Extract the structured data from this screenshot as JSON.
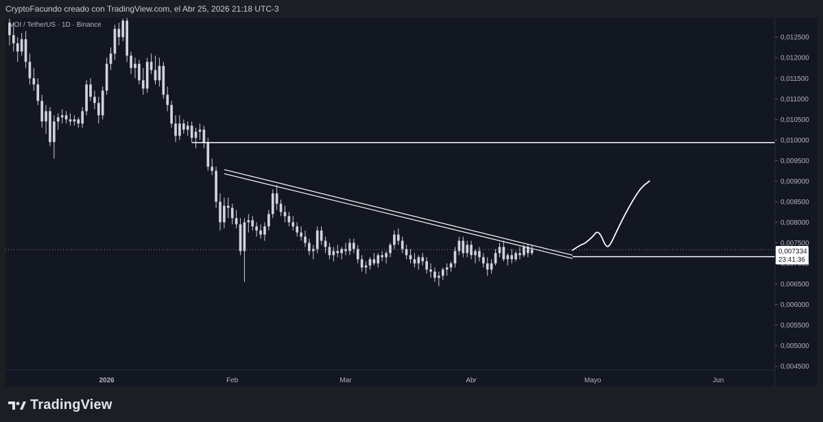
{
  "header": {
    "attribution": "CryptoFacundo creado con TradingView.com, el Abr 25, 2026 21:18 UTC-3"
  },
  "footer": {
    "brand": "TradingView"
  },
  "colors": {
    "background": "#131722",
    "candle": "#d1d4dc",
    "line": "#ffffff",
    "grid": "#2a2e39"
  },
  "chart_data": {
    "type": "candlestick",
    "legend": "VOI / TetherUS · 1D · Binance",
    "y_ticks": [
      "0,012500",
      "0,012000",
      "0,011500",
      "0,011000",
      "0,010500",
      "0,010000",
      "0,009500",
      "0,009000",
      "0,008500",
      "0,008000",
      "0,007500",
      "0,007000",
      "0,006500",
      "0,006000",
      "0,005500",
      "0,005000",
      "0,004500"
    ],
    "y_range": [
      0.00441,
      0.01297
    ],
    "x_range": [
      "2025-12-07",
      "2026-06-15"
    ],
    "x_ticks": [
      {
        "label": "2026",
        "date": "2026-01-01"
      },
      {
        "label": "Feb",
        "date": "2026-02-01"
      },
      {
        "label": "Mar",
        "date": "2026-03-01"
      },
      {
        "label": "Abr",
        "date": "2026-04-01"
      },
      {
        "label": "Mayo",
        "date": "2026-05-01"
      },
      {
        "label": "Jun",
        "date": "2026-06-01"
      }
    ],
    "price_label": {
      "value": "0,007334",
      "countdown": "23:41:36",
      "price": 0.007334
    },
    "ohlc_start_date": "2025-12-08",
    "ohlc": [
      [
        0.01285,
        0.01295,
        0.0123,
        0.01255
      ],
      [
        0.01255,
        0.01285,
        0.01215,
        0.01235
      ],
      [
        0.01235,
        0.0125,
        0.0119,
        0.01215
      ],
      [
        0.01215,
        0.0126,
        0.01205,
        0.01245
      ],
      [
        0.01245,
        0.01265,
        0.01175,
        0.0119
      ],
      [
        0.0119,
        0.0121,
        0.01135,
        0.0115
      ],
      [
        0.0115,
        0.01175,
        0.0112,
        0.01135
      ],
      [
        0.01135,
        0.0115,
        0.01085,
        0.01095
      ],
      [
        0.01095,
        0.0111,
        0.0103,
        0.01045
      ],
      [
        0.01045,
        0.01085,
        0.01015,
        0.0107
      ],
      [
        0.0107,
        0.0108,
        0.00985,
        0.00995
      ],
      [
        0.00995,
        0.0106,
        0.00955,
        0.01045
      ],
      [
        0.01045,
        0.01065,
        0.01025,
        0.01055
      ],
      [
        0.01055,
        0.01075,
        0.0104,
        0.0106
      ],
      [
        0.0106,
        0.0107,
        0.0104,
        0.0105
      ],
      [
        0.0105,
        0.01065,
        0.01035,
        0.01045
      ],
      [
        0.01045,
        0.0106,
        0.01035,
        0.0105
      ],
      [
        0.0105,
        0.01055,
        0.0103,
        0.0104
      ],
      [
        0.0104,
        0.0108,
        0.0103,
        0.0107
      ],
      [
        0.0107,
        0.01145,
        0.0106,
        0.01135
      ],
      [
        0.01135,
        0.0115,
        0.01095,
        0.01105
      ],
      [
        0.01105,
        0.0112,
        0.01075,
        0.0109
      ],
      [
        0.0109,
        0.01105,
        0.0104,
        0.0106
      ],
      [
        0.0106,
        0.0113,
        0.0105,
        0.0112
      ],
      [
        0.0112,
        0.012,
        0.0111,
        0.01185
      ],
      [
        0.01185,
        0.01225,
        0.0117,
        0.0121
      ],
      [
        0.0121,
        0.0128,
        0.01195,
        0.0127
      ],
      [
        0.0127,
        0.01285,
        0.0123,
        0.0125
      ],
      [
        0.0125,
        0.01295,
        0.0124,
        0.0129
      ],
      [
        0.0129,
        0.013,
        0.0119,
        0.01205
      ],
      [
        0.01205,
        0.01215,
        0.0116,
        0.01175
      ],
      [
        0.01175,
        0.012,
        0.0115,
        0.01185
      ],
      [
        0.01185,
        0.01195,
        0.01135,
        0.01145
      ],
      [
        0.01145,
        0.01175,
        0.0111,
        0.01125
      ],
      [
        0.01125,
        0.012,
        0.01115,
        0.0119
      ],
      [
        0.0119,
        0.0121,
        0.0116,
        0.0117
      ],
      [
        0.0117,
        0.01205,
        0.01135,
        0.01145
      ],
      [
        0.01145,
        0.012,
        0.0113,
        0.0118
      ],
      [
        0.0118,
        0.0119,
        0.011,
        0.0111
      ],
      [
        0.0111,
        0.0113,
        0.0107,
        0.01085
      ],
      [
        0.01085,
        0.01095,
        0.0103,
        0.0104
      ],
      [
        0.0104,
        0.0106,
        0.00995,
        0.0101
      ],
      [
        0.0101,
        0.0106,
        0.01,
        0.0104
      ],
      [
        0.0104,
        0.0105,
        0.01015,
        0.01025
      ],
      [
        0.01025,
        0.01045,
        0.0101,
        0.01035
      ],
      [
        0.01035,
        0.01045,
        0.00995,
        0.01005
      ],
      [
        0.01005,
        0.0103,
        0.0098,
        0.0102
      ],
      [
        0.0102,
        0.0104,
        0.01,
        0.01025
      ],
      [
        0.01025,
        0.01035,
        0.0098,
        0.00995
      ],
      [
        0.00995,
        0.01005,
        0.00925,
        0.00935
      ],
      [
        0.00935,
        0.00955,
        0.00915,
        0.00925
      ],
      [
        0.00925,
        0.00935,
        0.00835,
        0.0085
      ],
      [
        0.0085,
        0.0087,
        0.0078,
        0.008
      ],
      [
        0.008,
        0.0086,
        0.00785,
        0.0084
      ],
      [
        0.0084,
        0.0086,
        0.0081,
        0.00835
      ],
      [
        0.00835,
        0.00845,
        0.00795,
        0.0081
      ],
      [
        0.0081,
        0.0083,
        0.00785,
        0.00795
      ],
      [
        0.00795,
        0.0081,
        0.0072,
        0.0073
      ],
      [
        0.0073,
        0.0081,
        0.00655,
        0.008
      ],
      [
        0.008,
        0.0082,
        0.00775,
        0.00805
      ],
      [
        0.00805,
        0.00815,
        0.0078,
        0.0079
      ],
      [
        0.0079,
        0.008,
        0.00765,
        0.0078
      ],
      [
        0.0078,
        0.00795,
        0.0076,
        0.0077
      ],
      [
        0.0077,
        0.008,
        0.00755,
        0.0079
      ],
      [
        0.0079,
        0.0083,
        0.0078,
        0.0082
      ],
      [
        0.0082,
        0.0088,
        0.0081,
        0.0087
      ],
      [
        0.0087,
        0.0089,
        0.0083,
        0.00845
      ],
      [
        0.00845,
        0.00855,
        0.00815,
        0.00825
      ],
      [
        0.00825,
        0.0084,
        0.008,
        0.00815
      ],
      [
        0.00815,
        0.00825,
        0.0079,
        0.008
      ],
      [
        0.008,
        0.00815,
        0.0078,
        0.0079
      ],
      [
        0.0079,
        0.008,
        0.00765,
        0.00775
      ],
      [
        0.00775,
        0.0079,
        0.00755,
        0.00765
      ],
      [
        0.00765,
        0.0078,
        0.0074,
        0.0075
      ],
      [
        0.0075,
        0.0076,
        0.0072,
        0.0073
      ],
      [
        0.0073,
        0.00745,
        0.0071,
        0.00735
      ],
      [
        0.00735,
        0.0079,
        0.00725,
        0.0078
      ],
      [
        0.0078,
        0.0079,
        0.00745,
        0.00755
      ],
      [
        0.00755,
        0.00765,
        0.00725,
        0.0074
      ],
      [
        0.0074,
        0.0075,
        0.0071,
        0.0072
      ],
      [
        0.0072,
        0.0074,
        0.00705,
        0.0073
      ],
      [
        0.0073,
        0.00745,
        0.00715,
        0.00725
      ],
      [
        0.00725,
        0.0074,
        0.0071,
        0.00735
      ],
      [
        0.00735,
        0.0075,
        0.0072,
        0.0073
      ],
      [
        0.0073,
        0.0076,
        0.0072,
        0.0075
      ],
      [
        0.0075,
        0.0076,
        0.00725,
        0.00735
      ],
      [
        0.00735,
        0.00745,
        0.007,
        0.0071
      ],
      [
        0.0071,
        0.0072,
        0.0068,
        0.0069
      ],
      [
        0.0069,
        0.00705,
        0.00675,
        0.00695
      ],
      [
        0.00695,
        0.00715,
        0.00685,
        0.0071
      ],
      [
        0.0071,
        0.00725,
        0.00695,
        0.007
      ],
      [
        0.007,
        0.00725,
        0.0069,
        0.0072
      ],
      [
        0.0072,
        0.0073,
        0.00705,
        0.00715
      ],
      [
        0.00715,
        0.0073,
        0.007,
        0.00725
      ],
      [
        0.00725,
        0.0075,
        0.00715,
        0.00745
      ],
      [
        0.00745,
        0.0078,
        0.00735,
        0.0077
      ],
      [
        0.0077,
        0.00785,
        0.00745,
        0.00755
      ],
      [
        0.00755,
        0.00765,
        0.00725,
        0.00735
      ],
      [
        0.00735,
        0.00745,
        0.0071,
        0.0072
      ],
      [
        0.0072,
        0.00735,
        0.007,
        0.0071
      ],
      [
        0.0071,
        0.00725,
        0.0069,
        0.007
      ],
      [
        0.007,
        0.0072,
        0.00685,
        0.00715
      ],
      [
        0.00715,
        0.00725,
        0.00695,
        0.00705
      ],
      [
        0.00705,
        0.00715,
        0.00675,
        0.00685
      ],
      [
        0.00685,
        0.007,
        0.00665,
        0.0068
      ],
      [
        0.0068,
        0.0069,
        0.00655,
        0.00665
      ],
      [
        0.00665,
        0.0068,
        0.00645,
        0.0067
      ],
      [
        0.0067,
        0.0069,
        0.0066,
        0.00685
      ],
      [
        0.00685,
        0.007,
        0.0067,
        0.0069
      ],
      [
        0.0069,
        0.00705,
        0.0068,
        0.007
      ],
      [
        0.007,
        0.0074,
        0.0069,
        0.0073
      ],
      [
        0.0073,
        0.00765,
        0.0072,
        0.00755
      ],
      [
        0.00755,
        0.00765,
        0.00715,
        0.00725
      ],
      [
        0.00725,
        0.00755,
        0.00715,
        0.00745
      ],
      [
        0.00745,
        0.00755,
        0.0071,
        0.0072
      ],
      [
        0.0072,
        0.00735,
        0.007,
        0.0073
      ],
      [
        0.0073,
        0.0074,
        0.00705,
        0.00715
      ],
      [
        0.00715,
        0.00725,
        0.0069,
        0.007
      ],
      [
        0.007,
        0.00715,
        0.0067,
        0.00685
      ],
      [
        0.00685,
        0.0071,
        0.00675,
        0.007
      ],
      [
        0.007,
        0.00735,
        0.00695,
        0.00725
      ],
      [
        0.00725,
        0.0075,
        0.00715,
        0.0074
      ],
      [
        0.0074,
        0.00755,
        0.00705,
        0.0071
      ],
      [
        0.0071,
        0.00725,
        0.00695,
        0.0072
      ],
      [
        0.0072,
        0.00735,
        0.007,
        0.0071
      ],
      [
        0.0071,
        0.0073,
        0.00705,
        0.00725
      ],
      [
        0.00725,
        0.0074,
        0.0071,
        0.0072
      ],
      [
        0.0072,
        0.00745,
        0.00715,
        0.0074
      ],
      [
        0.0074,
        0.00745,
        0.00715,
        0.00725
      ],
      [
        0.00725,
        0.00745,
        0.0072,
        0.007334
      ]
    ],
    "horizontal_lines": [
      {
        "price": 0.009935,
        "from": "2026-01-22",
        "to": "2026-06-15"
      },
      {
        "price": 0.007165,
        "from": "2026-04-26",
        "to": "2026-06-15"
      }
    ],
    "trendlines": [
      {
        "from": [
          "2026-01-30",
          0.00918
        ],
        "to": [
          "2026-04-26",
          0.00712
        ]
      },
      {
        "from": [
          "2026-01-30",
          0.00928
        ],
        "to": [
          "2026-04-26",
          0.0072
        ]
      }
    ],
    "projection": [
      [
        "2026-04-26",
        0.00732
      ],
      [
        "2026-04-28",
        0.00745
      ],
      [
        "2026-04-29",
        0.00748
      ],
      [
        "2026-05-01",
        0.00765
      ],
      [
        "2026-05-02",
        0.00778
      ],
      [
        "2026-05-03",
        0.0077
      ],
      [
        "2026-05-04",
        0.00745
      ],
      [
        "2026-05-05",
        0.00738
      ],
      [
        "2026-05-07",
        0.0078
      ],
      [
        "2026-05-09",
        0.0082
      ],
      [
        "2026-05-11",
        0.00855
      ],
      [
        "2026-05-13",
        0.00885
      ],
      [
        "2026-05-15",
        0.009
      ]
    ]
  }
}
